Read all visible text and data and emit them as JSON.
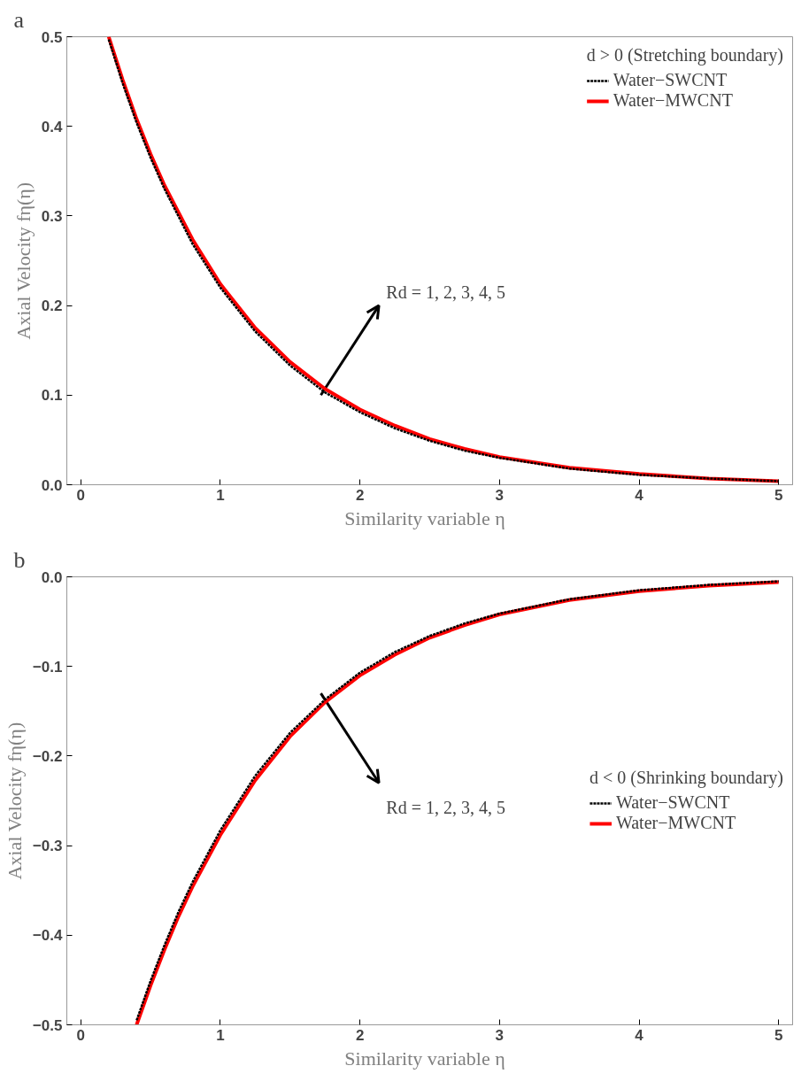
{
  "chart_data": [
    {
      "type": "line",
      "title": "a",
      "xlabel": "Similarity variable   η",
      "ylabel": "Axial Velocity fη(η)",
      "legend_title": "d > 0 (Stretching boundary)",
      "legend": "top right",
      "xlim": [
        -0.1,
        5.1
      ],
      "ylim": [
        0,
        0.5
      ],
      "xticks": [
        0,
        1,
        2,
        3,
        4,
        5
      ],
      "yticks": [
        {
          "value": 0,
          "label": "0.0"
        },
        0.1,
        0.2,
        0.3,
        0.4,
        0.5
      ],
      "grid": false,
      "x": [
        0.2,
        0.3,
        0.4,
        0.5,
        0.6,
        0.8,
        1.0,
        1.25,
        1.5,
        1.75,
        2.0,
        2.25,
        2.5,
        2.75,
        3.0,
        3.5,
        4.0,
        4.5,
        5.0
      ],
      "series": [
        {
          "name": "Water−SWCNT",
          "color": "#000000",
          "line_style": "dashed",
          "values": [
            0.497,
            0.448,
            0.404,
            0.365,
            0.33,
            0.269,
            0.22,
            0.171,
            0.133,
            0.103,
            0.081,
            0.063,
            0.049,
            0.038,
            0.03,
            0.018,
            0.011,
            0.007,
            0.004
          ]
        },
        {
          "name": "Water−MWCNT",
          "color": "#ff0000",
          "line_style": "solid",
          "values": [
            0.5,
            0.452,
            0.408,
            0.369,
            0.334,
            0.274,
            0.224,
            0.175,
            0.137,
            0.107,
            0.084,
            0.066,
            0.051,
            0.04,
            0.031,
            0.019,
            0.012,
            0.007,
            0.004
          ]
        }
      ],
      "annotations": [
        "Rd =  1,  2,  3,  4,  5"
      ]
    },
    {
      "type": "line",
      "title": "b",
      "xlabel": "Similarity variable   η",
      "ylabel": "Axial Velocity fη(η)",
      "legend_title": "d < 0 (Shrinking boundary)",
      "legend": "right",
      "xlim": [
        -0.1,
        5.1
      ],
      "ylim": [
        -0.5,
        0
      ],
      "xticks": [
        0,
        1,
        2,
        3,
        4,
        5
      ],
      "yticks": [
        {
          "value": -0.5,
          "label": "−0.5"
        },
        {
          "value": -0.4,
          "label": "−0.4"
        },
        {
          "value": -0.3,
          "label": "−0.3"
        },
        {
          "value": -0.2,
          "label": "−0.2"
        },
        {
          "value": -0.1,
          "label": "−0.1"
        },
        {
          "value": 0,
          "label": "0.0"
        }
      ],
      "grid": false,
      "x": [
        0.4,
        0.5,
        0.6,
        0.7,
        0.8,
        1.0,
        1.25,
        1.5,
        1.75,
        2.0,
        2.25,
        2.5,
        2.75,
        3.0,
        3.5,
        4.0,
        4.5,
        5.0
      ],
      "series": [
        {
          "name": "Water−SWCNT",
          "color": "#000000",
          "line_style": "dashed",
          "values": [
            -0.495,
            -0.451,
            -0.411,
            -0.374,
            -0.341,
            -0.283,
            -0.222,
            -0.174,
            -0.137,
            -0.107,
            -0.084,
            -0.066,
            -0.052,
            -0.041,
            -0.025,
            -0.015,
            -0.009,
            -0.005
          ]
        },
        {
          "name": "Water−MWCNT",
          "color": "#ff0000",
          "line_style": "solid",
          "values": [
            -0.5,
            -0.456,
            -0.416,
            -0.379,
            -0.346,
            -0.288,
            -0.227,
            -0.178,
            -0.14,
            -0.11,
            -0.087,
            -0.068,
            -0.054,
            -0.042,
            -0.026,
            -0.016,
            -0.01,
            -0.006
          ]
        }
      ],
      "annotations": [
        "Rd =  1,  2,  3,  4,  5"
      ]
    }
  ]
}
